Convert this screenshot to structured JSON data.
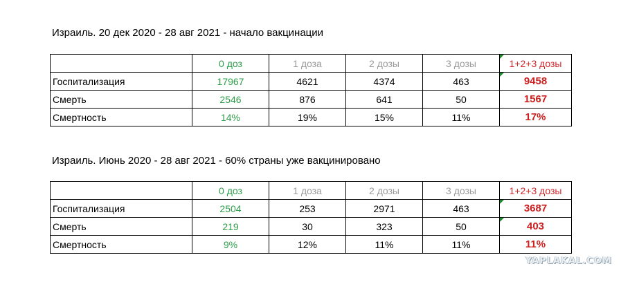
{
  "section1": {
    "caption": "Израиль. 20 дек 2020 - 28 авг 2021 - начало вакцинации",
    "headers": [
      "",
      "0 доз",
      "1 доза",
      "2 дозы",
      "3 дозы",
      "1+2+3 дозы"
    ],
    "rows": [
      {
        "label": "Госпитализация",
        "values": [
          "17967",
          "4621",
          "4374",
          "463",
          "9458"
        ]
      },
      {
        "label": "Смерть",
        "values": [
          "2546",
          "876",
          "641",
          "50",
          "1567"
        ]
      },
      {
        "label": "Смертность",
        "values": [
          "14%",
          "19%",
          "15%",
          "11%",
          "17%"
        ]
      }
    ]
  },
  "section2": {
    "caption": "Израиль. Июнь 2020 - 28 авг 2021 - 60% страны уже вакцинировано",
    "headers": [
      "",
      "0 доз",
      "1 доза",
      "2 дозы",
      "3 дозы",
      "1+2+3 дозы"
    ],
    "rows": [
      {
        "label": "Госпитализация",
        "values": [
          "2504",
          "253",
          "2971",
          "463",
          "3687"
        ]
      },
      {
        "label": "Смерть",
        "values": [
          "219",
          "30",
          "323",
          "50",
          "403"
        ]
      },
      {
        "label": "Смертность",
        "values": [
          "9%",
          "12%",
          "11%",
          "11%",
          "11%"
        ]
      }
    ]
  },
  "watermark": "YAPLAKAL.COM",
  "colors": {
    "zero_doses": "#2a9d48",
    "dose_headers": "#9a9a9a",
    "sum_header": "#d7262c",
    "sum_values": "#cc1f1f",
    "cell_flag": "#1e8a2e"
  }
}
